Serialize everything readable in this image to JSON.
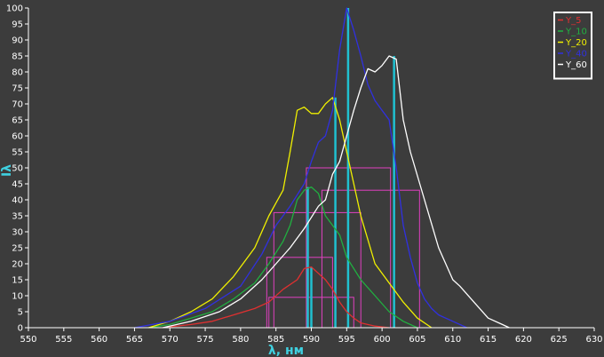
{
  "chart_data": {
    "type": "line",
    "xlabel": "λ, нм",
    "ylabel": "Iλ",
    "xlim": [
      550,
      630
    ],
    "ylim": [
      0,
      100
    ],
    "x_ticks": [
      550,
      555,
      560,
      565,
      570,
      575,
      580,
      585,
      590,
      595,
      600,
      605,
      610,
      615,
      620,
      625,
      630
    ],
    "y_ticks": [
      0,
      5,
      10,
      15,
      20,
      25,
      30,
      35,
      40,
      45,
      50,
      55,
      60,
      65,
      70,
      75,
      80,
      85,
      90,
      95,
      100
    ],
    "grid": false,
    "legend_position": "top-right",
    "colors": {
      "background": "#3c3c3c",
      "axes": "#ffffff",
      "label": "#3fd0e0",
      "peak_marker": "#20c0d0",
      "fwhm_box": "#e040c0"
    },
    "series": [
      {
        "name": "Y_5",
        "color": "#e03030",
        "x": [
          569,
          573,
          576,
          579,
          582,
          584,
          586,
          588,
          589,
          590,
          591,
          592,
          593,
          594,
          595,
          596,
          597,
          599,
          601
        ],
        "y": [
          0,
          1,
          2,
          4,
          6,
          8,
          12,
          15,
          18.5,
          19,
          17,
          15,
          12,
          8,
          5,
          3,
          1.5,
          0.5,
          0
        ]
      },
      {
        "name": "Y_10",
        "color": "#20b040",
        "x": [
          567,
          570,
          573,
          576,
          579,
          582,
          584,
          586,
          587,
          588,
          589,
          590,
          591,
          592,
          593,
          594,
          595,
          597,
          599,
          601,
          603,
          605
        ],
        "y": [
          0,
          1,
          3,
          5,
          9,
          14,
          20,
          27,
          32,
          40,
          43,
          44,
          42,
          35,
          32,
          29,
          22,
          15,
          10,
          5,
          2,
          0
        ]
      },
      {
        "name": "Y_20",
        "color": "#f0f000",
        "x": [
          567,
          570,
          573,
          576,
          579,
          582,
          584,
          585,
          586,
          587,
          588,
          589,
          590,
          591,
          592,
          593,
          594,
          595,
          596,
          597,
          599,
          601,
          603,
          605,
          607
        ],
        "y": [
          0,
          2,
          5,
          9,
          16,
          25,
          35,
          39,
          43,
          55,
          68,
          69,
          67,
          67,
          70,
          72,
          65,
          55,
          45,
          35,
          20,
          14,
          8,
          3,
          0
        ]
      },
      {
        "name": "Y_40",
        "color": "#3030e0",
        "x": [
          565,
          570,
          575,
          580,
          583,
          585,
          587,
          589,
          590,
          591,
          592,
          593,
          594,
          595,
          596,
          597,
          598,
          599,
          600,
          601,
          602,
          603,
          604,
          605,
          606,
          607,
          608,
          610,
          612
        ],
        "y": [
          0,
          2,
          6,
          13,
          23,
          32,
          38,
          45,
          52,
          58,
          60,
          68,
          87,
          100,
          93,
          85,
          76,
          71,
          68,
          65,
          50,
          32,
          22,
          14,
          9,
          6,
          4,
          2,
          0
        ]
      },
      {
        "name": "Y_60",
        "color": "#ffffff",
        "x": [
          569,
          573,
          577,
          580,
          583,
          585,
          587,
          589,
          591,
          592,
          593,
          594,
          595,
          596,
          597,
          598,
          599,
          600,
          601,
          602,
          603,
          604,
          606,
          608,
          610,
          611,
          613,
          615,
          617,
          618
        ],
        "y": [
          0,
          2,
          5,
          9,
          15,
          20,
          25,
          31,
          38,
          40,
          48,
          52,
          60,
          68,
          75,
          81,
          80,
          82,
          85,
          84,
          65,
          55,
          40,
          25,
          15,
          13,
          8,
          3,
          1,
          0
        ]
      }
    ],
    "peaks": [
      {
        "series": "Y_5",
        "x": 590,
        "y": 19
      },
      {
        "series": "Y_10",
        "x": 589.5,
        "y": 44
      },
      {
        "series": "Y_20",
        "x": 593.4,
        "y": 72
      },
      {
        "series": "Y_40",
        "x": 595.2,
        "y": 100
      },
      {
        "series": "Y_60",
        "x": 601.7,
        "y": 85
      }
    ],
    "fwhm_boxes": [
      {
        "series": "Y_5",
        "x1": 584,
        "x2": 596,
        "y": 9.5
      },
      {
        "series": "Y_10",
        "x1": 583.7,
        "x2": 593,
        "y": 22
      },
      {
        "series": "Y_20",
        "x1": 584.7,
        "x2": 597,
        "y": 36
      },
      {
        "series": "Y_40",
        "x1": 589.3,
        "x2": 601.2,
        "y": 50
      },
      {
        "series": "Y_60",
        "x1": 591.5,
        "x2": 605.3,
        "y": 43
      }
    ]
  }
}
